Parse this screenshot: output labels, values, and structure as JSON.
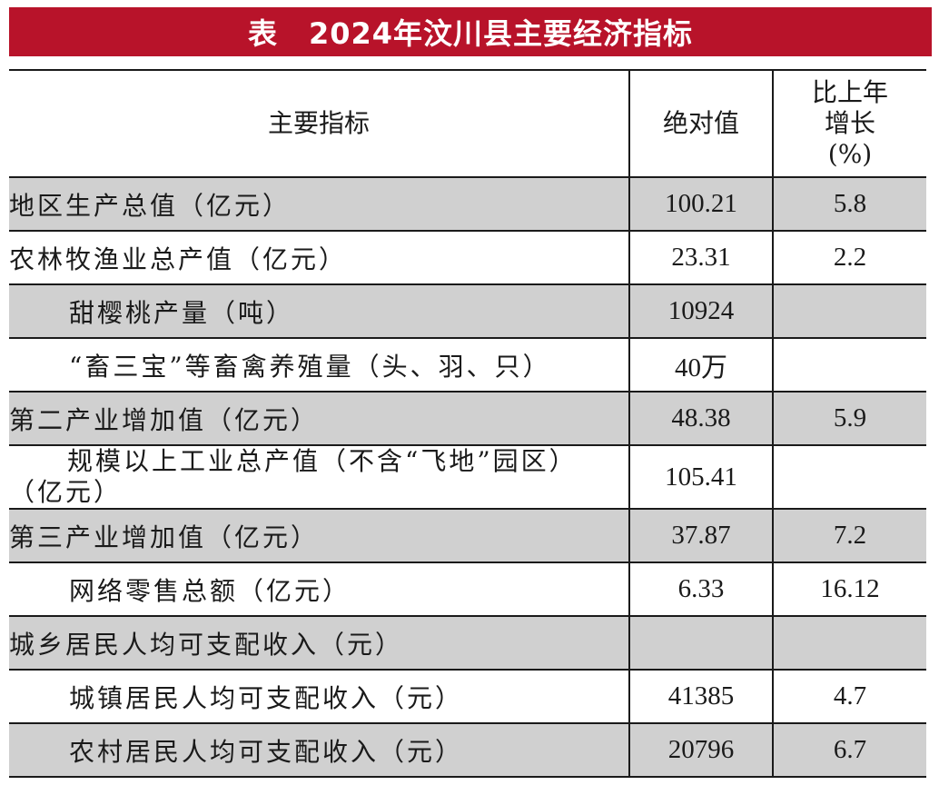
{
  "title": {
    "prefix": "表",
    "text": "2024年汶川县主要经济指标"
  },
  "header": {
    "indicator": "主要指标",
    "value": "绝对值",
    "growth_line1": "比上年",
    "growth_line2": "增长",
    "growth_line3": "(%)"
  },
  "rows": [
    {
      "label": "地区生产总值（亿元）",
      "value": "100.21",
      "growth": "5.8"
    },
    {
      "label": "农林牧渔业总产值（亿元）",
      "value": "23.31",
      "growth": "2.2"
    },
    {
      "label": "甜樱桃产量（吨）",
      "value": "10924",
      "growth": ""
    },
    {
      "label": "“畜三宝”等畜禽养殖量（头、羽、只）",
      "value": "40万",
      "growth": ""
    },
    {
      "label": "第二产业增加值（亿元）",
      "value": "48.38",
      "growth": "5.9"
    },
    {
      "label_line1": "规模以上工业总产值（不含“飞地”园区）",
      "label_line2": "（亿元）",
      "value": "105.41",
      "growth": ""
    },
    {
      "label": "第三产业增加值（亿元）",
      "value": "37.87",
      "growth": "7.2"
    },
    {
      "label": "网络零售总额（亿元）",
      "value": "6.33",
      "growth": "16.12"
    },
    {
      "label": "城乡居民人均可支配收入（元）",
      "value": "",
      "growth": ""
    },
    {
      "label": "城镇居民人均可支配收入（元）",
      "value": "41385",
      "growth": "4.7"
    },
    {
      "label": "农村居民人均可支配收入（元）",
      "value": "20796",
      "growth": "6.7"
    }
  ],
  "colors": {
    "title_background": "#b8132a",
    "shaded_row": "#d0d0d0"
  }
}
